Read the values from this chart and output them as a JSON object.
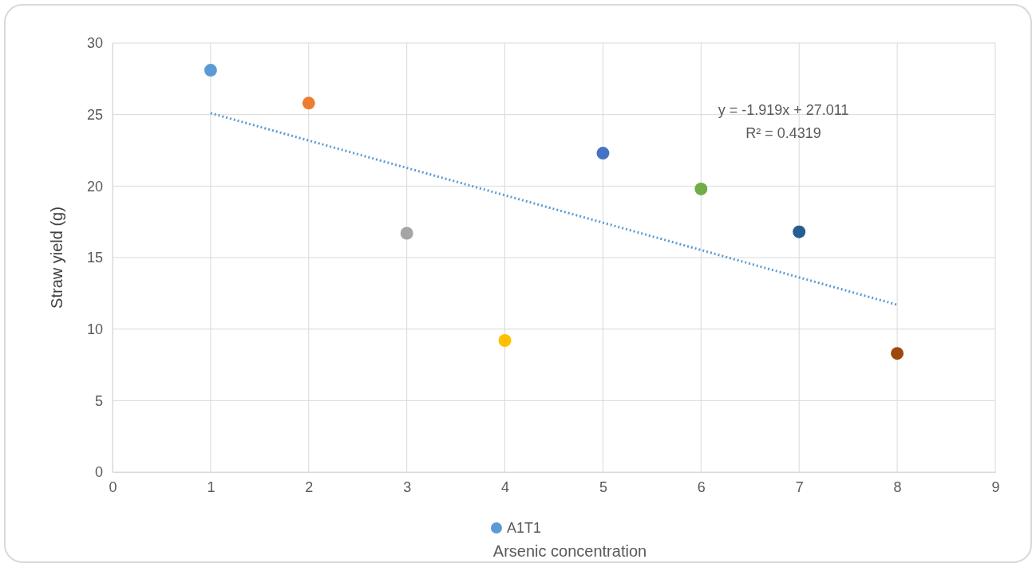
{
  "chart_data": {
    "type": "scatter",
    "xlabel": "Arsenic concentration",
    "ylabel": "Straw yield (g)",
    "xlim": [
      0,
      9
    ],
    "xticks": [
      0,
      1,
      2,
      3,
      4,
      5,
      6,
      7,
      8,
      9
    ],
    "ylim": [
      0,
      30
    ],
    "yticks": [
      0,
      5,
      10,
      15,
      20,
      25,
      30
    ],
    "grid": true,
    "legend": "bottom",
    "marker": "circle",
    "series": [
      {
        "name": "A1T1",
        "color": "#5b9bd5",
        "colors": [
          "#5b9bd5",
          "#ed7d31",
          "#a5a5a5",
          "#ffc000",
          "#4472c4",
          "#70ad47",
          "#255e91",
          "#9e480e"
        ],
        "x": [
          1,
          2,
          3,
          4,
          5,
          6,
          7,
          8
        ],
        "values": [
          28.1,
          25.8,
          16.7,
          9.2,
          22.3,
          19.8,
          16.8,
          8.3
        ]
      },
      {
        "type": "line",
        "color": "#5b9bd5",
        "line_style": "dotted",
        "marker": "none",
        "x": [
          1,
          8
        ],
        "values": [
          25.1,
          11.7
        ]
      }
    ],
    "annotations": [
      "y = -1.919x + 27.011",
      "R² = 0.4319"
    ]
  }
}
